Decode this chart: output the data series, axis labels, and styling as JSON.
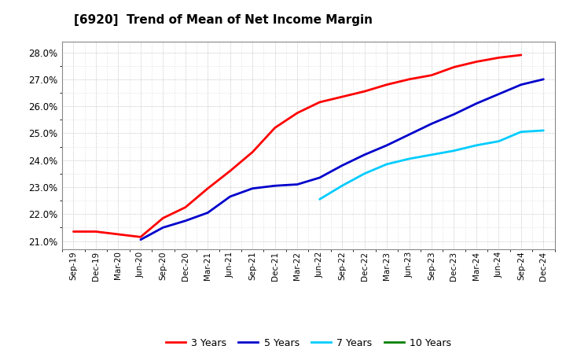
{
  "title": "[6920]  Trend of Mean of Net Income Margin",
  "background_color": "#ffffff",
  "plot_background_color": "#ffffff",
  "grid_color": "#aaaaaa",
  "ylim": [
    0.207,
    0.284
  ],
  "yticks": [
    0.21,
    0.22,
    0.23,
    0.24,
    0.25,
    0.26,
    0.27,
    0.28
  ],
  "x_labels": [
    "Sep-19",
    "Dec-19",
    "Mar-20",
    "Jun-20",
    "Sep-20",
    "Dec-20",
    "Mar-21",
    "Jun-21",
    "Sep-21",
    "Dec-21",
    "Mar-22",
    "Jun-22",
    "Sep-22",
    "Dec-22",
    "Mar-23",
    "Jun-23",
    "Sep-23",
    "Dec-23",
    "Mar-24",
    "Jun-24",
    "Sep-24",
    "Dec-24"
  ],
  "series": [
    {
      "name": "3 Years",
      "color": "#ff0000",
      "linewidth": 2.0,
      "data_x": [
        0,
        1,
        2,
        3,
        4,
        5,
        6,
        7,
        8,
        9,
        10,
        11,
        12,
        13,
        14,
        15,
        16,
        17,
        18,
        19,
        20
      ],
      "data_y": [
        0.2135,
        0.2135,
        0.2125,
        0.2115,
        0.2185,
        0.2225,
        0.2295,
        0.236,
        0.243,
        0.252,
        0.2575,
        0.2615,
        0.2635,
        0.2655,
        0.268,
        0.27,
        0.2715,
        0.2745,
        0.2765,
        0.278,
        0.279
      ]
    },
    {
      "name": "5 Years",
      "color": "#0000cc",
      "linewidth": 2.0,
      "data_x": [
        3,
        4,
        5,
        6,
        7,
        8,
        9,
        10,
        11,
        12,
        13,
        14,
        15,
        16,
        17,
        18,
        19,
        20,
        21
      ],
      "data_y": [
        0.2105,
        0.215,
        0.2175,
        0.2205,
        0.2265,
        0.2295,
        0.2305,
        0.231,
        0.2335,
        0.238,
        0.242,
        0.2455,
        0.2495,
        0.2535,
        0.257,
        0.261,
        0.2645,
        0.268,
        0.27
      ]
    },
    {
      "name": "7 Years",
      "color": "#00ccff",
      "linewidth": 2.0,
      "data_x": [
        11,
        12,
        13,
        14,
        15,
        16,
        17,
        18,
        19,
        20,
        21
      ],
      "data_y": [
        0.2255,
        0.2305,
        0.235,
        0.2385,
        0.2405,
        0.242,
        0.2435,
        0.2455,
        0.247,
        0.2505,
        0.251
      ]
    },
    {
      "name": "10 Years",
      "color": "#008000",
      "linewidth": 2.0,
      "data_x": [],
      "data_y": []
    }
  ],
  "legend_labels": [
    "3 Years",
    "5 Years",
    "7 Years",
    "10 Years"
  ],
  "legend_colors": [
    "#ff0000",
    "#0000cc",
    "#00ccff",
    "#008000"
  ]
}
